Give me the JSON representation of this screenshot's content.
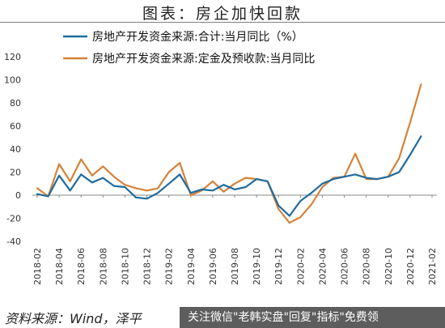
{
  "header": {
    "title": "图表：房企加快回款"
  },
  "footer": {
    "source": "资料来源：Wind，泽平",
    "watermark": "关注微信\"老韩实盘\"回复\"指标\"免费领"
  },
  "chart_data": {
    "type": "line",
    "title": "图表：房企加快回款",
    "xlabel": "",
    "ylabel": "",
    "ylim": [
      -40,
      120
    ],
    "yticks": [
      "-40",
      "-20",
      "0",
      "20",
      "40",
      "60",
      "80",
      "100",
      "120"
    ],
    "x": [
      "2018-02",
      "2018-03",
      "2018-04",
      "2018-05",
      "2018-06",
      "2018-07",
      "2018-08",
      "2018-09",
      "2018-10",
      "2018-11",
      "2018-12",
      "2019-01",
      "2019-02",
      "2019-03",
      "2019-04",
      "2019-05",
      "2019-06",
      "2019-07",
      "2019-08",
      "2019-09",
      "2019-10",
      "2019-11",
      "2019-12",
      "2020-01",
      "2020-02",
      "2020-03",
      "2020-04",
      "2020-05",
      "2020-06",
      "2020-07",
      "2020-08",
      "2020-09",
      "2020-10",
      "2020-11",
      "2020-12",
      "2021-01",
      "2021-02"
    ],
    "xtick_labels": [
      "2018-02",
      "2018-04",
      "2018-06",
      "2018-08",
      "2018-10",
      "2018-12",
      "2019-02",
      "2019-04",
      "2019-06",
      "2019-08",
      "2019-10",
      "2019-12",
      "2020-02",
      "2020-04",
      "2020-06",
      "2020-08",
      "2020-10",
      "2020-12",
      "2021-02"
    ],
    "grid": false,
    "legend_position": "top",
    "series": [
      {
        "name": "房地产开发资金来源:合计:当月同比（%）",
        "color": "#1f6b9e",
        "values": [
          1,
          -1,
          17,
          4,
          18,
          11,
          15,
          8,
          7,
          -2,
          -3,
          2,
          10,
          18,
          2,
          5,
          4,
          9,
          5,
          7,
          14,
          12,
          -9,
          -18,
          -5,
          2,
          10,
          14,
          16,
          18,
          15,
          14,
          16,
          20,
          35,
          51,
          null
        ]
      },
      {
        "name": "房地产开发资金来源:定金及预收款:当月同比",
        "color": "#d4823a",
        "values": [
          6,
          -1,
          27,
          12,
          31,
          17,
          25,
          16,
          9,
          6,
          4,
          6,
          20,
          28,
          0,
          4,
          12,
          3,
          10,
          15,
          14,
          12,
          -12,
          -24,
          -19,
          -8,
          7,
          15,
          16,
          36,
          14,
          14,
          16,
          32,
          63,
          96,
          null
        ]
      }
    ]
  }
}
